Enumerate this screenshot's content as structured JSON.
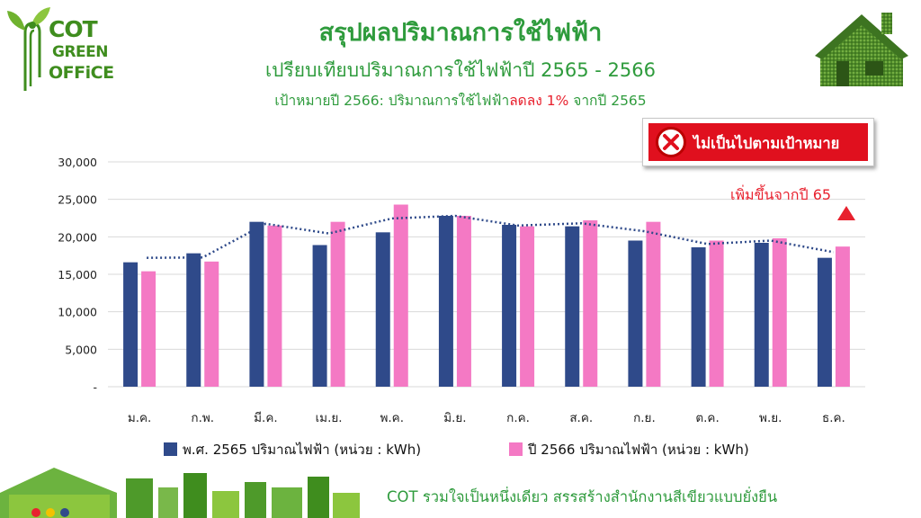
{
  "logo": {
    "line1": "COT",
    "line2": "GREEN",
    "line3": "OFFiCE"
  },
  "header": {
    "title": "สรุปผลปริมาณการใช้ไฟฟ้า",
    "subtitle": "เปรียบเทียบปริมาณการใช้ไฟฟ้าปี 2565 - 2566",
    "target_prefix": "เป้าหมายปี 2566: ปริมาณการใช้ไฟฟ้า",
    "target_highlight": "ลดลง 1%",
    "target_suffix": " จากปี 2565"
  },
  "status": {
    "label": "ไม่เป็นไปตามเป้าหมาย",
    "icon": "x-circle-icon"
  },
  "increase_note": {
    "label": "เพิ่มขึ้นจากปี 65",
    "icon": "up-triangle-icon"
  },
  "footer": {
    "slogan": "COT รวมใจเป็นหนึ่งเดียว สรรสร้างสำนักงานสีเขียวแบบยั่งยืน"
  },
  "colors": {
    "series_2565": "#2f4a8a",
    "series_2566": "#f479c4",
    "trend": "#2f4a8a",
    "accent_green": "#2e9b3c",
    "alert_red": "#e0101e"
  },
  "chart_data": {
    "type": "bar",
    "categories": [
      "ม.ค.",
      "ก.พ.",
      "มี.ค.",
      "เม.ย.",
      "พ.ค.",
      "มิ.ย.",
      "ก.ค.",
      "ส.ค.",
      "ก.ย.",
      "ต.ค.",
      "พ.ย.",
      "ธ.ค."
    ],
    "y_ticks": [
      "-",
      "5,000",
      "10,000",
      "15,000",
      "20,000",
      "25,000",
      "30,000"
    ],
    "ylim": [
      0,
      30000
    ],
    "series": [
      {
        "name": "พ.ศ. 2565 ปริมาณไฟฟ้า (หน่วย : kWh)",
        "values": [
          16600,
          17800,
          22000,
          18900,
          20600,
          22800,
          21600,
          21400,
          19500,
          18600,
          19200,
          17200
        ]
      },
      {
        "name": "ปี 2566 ปริมาณไฟฟ้า (หน่วย : kWh)",
        "values": [
          15400,
          16700,
          21500,
          22000,
          24300,
          22800,
          21400,
          22200,
          22000,
          19500,
          19800,
          18700
        ]
      }
    ],
    "trendline": {
      "style": "dotted",
      "series": "moving-average"
    },
    "grid": true,
    "legend_position": "bottom"
  }
}
